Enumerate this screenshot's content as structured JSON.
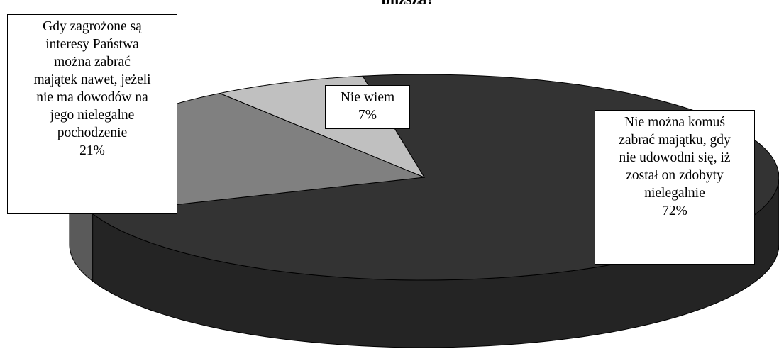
{
  "chart_data": {
    "type": "pie3d",
    "title": "bliższa?",
    "categories": [
      "Nie można komuś\nzabrać majątku, gdy\nnie udowodni się, iż\nzostał on zdobyty\nnielegalnie",
      "Gdy zagrożone są\ninteresy Państwa\nmożna zabrać\nmajątek nawet, jeżeli\nnie ma dowodów na\njego nielegalne\npochodzenie",
      "Nie wiem"
    ],
    "values": [
      72,
      21,
      7
    ],
    "value_labels": [
      "72%",
      "21%",
      "7%"
    ],
    "colors": [
      "#333333",
      "#808080",
      "#c0c0c0"
    ]
  }
}
